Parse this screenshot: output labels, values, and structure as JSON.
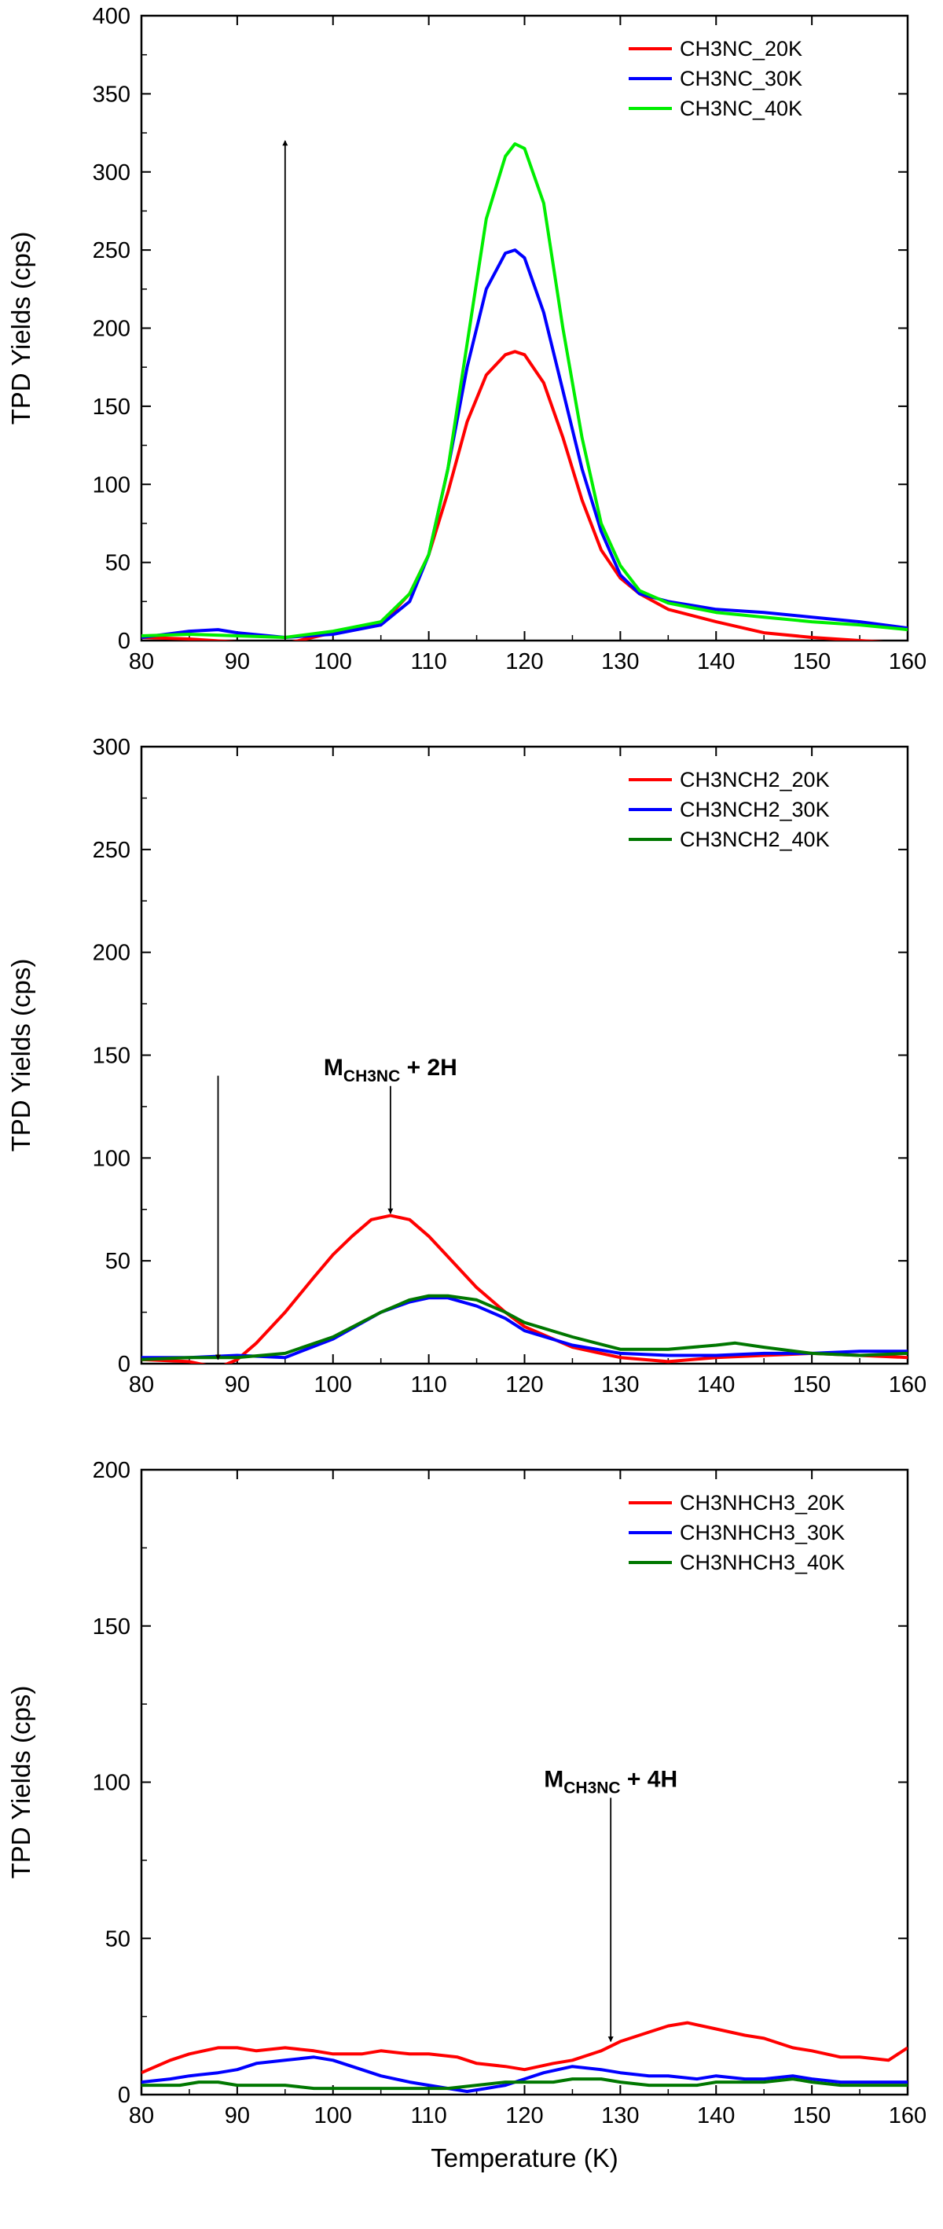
{
  "chart_data": [
    {
      "type": "line",
      "xlabel": "",
      "ylabel": "TPD Yields (cps)",
      "xlim": [
        80,
        160
      ],
      "ylim": [
        0,
        400
      ],
      "xticks": [
        80,
        90,
        100,
        110,
        120,
        130,
        140,
        150,
        160
      ],
      "yticks": [
        0,
        50,
        100,
        150,
        200,
        250,
        300,
        350,
        400
      ],
      "legend_position": "top-right",
      "series": [
        {
          "name": "CH3NC_20K",
          "color": "#ff0000",
          "x": [
            80,
            85,
            90,
            95,
            100,
            105,
            108,
            110,
            112,
            114,
            116,
            118,
            119,
            120,
            122,
            124,
            126,
            128,
            130,
            132,
            135,
            140,
            145,
            150,
            155,
            160
          ],
          "y": [
            2,
            1,
            -1,
            -2,
            5,
            10,
            30,
            55,
            95,
            140,
            170,
            183,
            185,
            183,
            165,
            130,
            90,
            58,
            40,
            30,
            20,
            12,
            5,
            2,
            0,
            -2
          ]
        },
        {
          "name": "CH3NC_30K",
          "color": "#0000ff",
          "x": [
            80,
            85,
            88,
            90,
            95,
            100,
            105,
            108,
            110,
            112,
            114,
            116,
            118,
            119,
            120,
            122,
            124,
            126,
            128,
            130,
            132,
            135,
            140,
            145,
            150,
            155,
            160
          ],
          "y": [
            2,
            6,
            7,
            5,
            2,
            4,
            10,
            25,
            55,
            110,
            175,
            225,
            248,
            250,
            245,
            210,
            160,
            110,
            70,
            42,
            30,
            25,
            20,
            18,
            15,
            12,
            8
          ]
        },
        {
          "name": "CH3NC_40K",
          "color": "#00ee00",
          "x": [
            80,
            85,
            90,
            95,
            100,
            105,
            108,
            110,
            112,
            114,
            116,
            118,
            119,
            120,
            122,
            124,
            126,
            128,
            130,
            132,
            135,
            140,
            145,
            150,
            155,
            160
          ],
          "y": [
            3,
            4,
            3,
            2,
            6,
            12,
            30,
            55,
            110,
            190,
            270,
            310,
            318,
            315,
            280,
            200,
            130,
            75,
            48,
            32,
            24,
            18,
            15,
            12,
            10,
            7
          ]
        }
      ],
      "annotations": [
        {
          "type": "arrow",
          "x": 95,
          "y_from": 0,
          "y_to": 320,
          "direction": "up"
        }
      ]
    },
    {
      "type": "line",
      "xlabel": "",
      "ylabel": "TPD Yields (cps)",
      "xlim": [
        80,
        160
      ],
      "ylim": [
        0,
        300
      ],
      "xticks": [
        80,
        90,
        100,
        110,
        120,
        130,
        140,
        150,
        160
      ],
      "yticks": [
        0,
        50,
        100,
        150,
        200,
        250,
        300
      ],
      "legend_position": "top-right",
      "series": [
        {
          "name": "CH3NCH2_20K",
          "color": "#ff0000",
          "x": [
            80,
            85,
            88,
            90,
            92,
            95,
            98,
            100,
            102,
            104,
            106,
            108,
            110,
            112,
            115,
            118,
            120,
            125,
            130,
            135,
            140,
            145,
            150,
            155,
            160
          ],
          "y": [
            2,
            1,
            -2,
            2,
            10,
            25,
            42,
            53,
            62,
            70,
            72,
            70,
            62,
            52,
            37,
            25,
            18,
            8,
            3,
            1,
            3,
            4,
            5,
            4,
            3
          ]
        },
        {
          "name": "CH3NCH2_30K",
          "color": "#0000ff",
          "x": [
            80,
            85,
            90,
            95,
            100,
            105,
            108,
            110,
            112,
            115,
            118,
            120,
            125,
            130,
            135,
            140,
            145,
            150,
            155,
            160
          ],
          "y": [
            3,
            3,
            4,
            3,
            12,
            25,
            30,
            32,
            32,
            28,
            22,
            16,
            9,
            5,
            4,
            4,
            5,
            5,
            6,
            6
          ]
        },
        {
          "name": "CH3NCH2_40K",
          "color": "#007700",
          "x": [
            80,
            85,
            90,
            95,
            100,
            105,
            108,
            110,
            112,
            115,
            118,
            120,
            125,
            130,
            135,
            140,
            142,
            145,
            150,
            155,
            160
          ],
          "y": [
            2,
            3,
            3,
            5,
            13,
            25,
            31,
            33,
            33,
            31,
            25,
            20,
            13,
            7,
            7,
            9,
            10,
            8,
            5,
            4,
            5
          ]
        }
      ],
      "annotations": [
        {
          "type": "arrow",
          "x": 88,
          "y_from": 140,
          "y_to": 2,
          "direction": "down"
        },
        {
          "type": "arrow",
          "x": 106,
          "y_from": 135,
          "y_to": 73,
          "direction": "down",
          "label_main": "M",
          "label_sub": "CH3NC",
          "label_tail": " + 2H"
        }
      ]
    },
    {
      "type": "line",
      "xlabel": "Temperature (K)",
      "ylabel": "TPD Yields (cps)",
      "xlim": [
        80,
        160
      ],
      "ylim": [
        0,
        200
      ],
      "xticks": [
        80,
        90,
        100,
        110,
        120,
        130,
        140,
        150,
        160
      ],
      "yticks": [
        0,
        50,
        100,
        150,
        200
      ],
      "legend_position": "top-right",
      "series": [
        {
          "name": "CH3NHCH3_20K",
          "color": "#ff0000",
          "x": [
            80,
            83,
            85,
            88,
            90,
            92,
            95,
            98,
            100,
            103,
            105,
            108,
            110,
            113,
            115,
            118,
            120,
            123,
            125,
            128,
            130,
            133,
            135,
            137,
            140,
            143,
            145,
            148,
            150,
            153,
            155,
            158,
            160
          ],
          "y": [
            7,
            11,
            13,
            15,
            15,
            14,
            15,
            14,
            13,
            13,
            14,
            13,
            13,
            12,
            10,
            9,
            8,
            10,
            11,
            14,
            17,
            20,
            22,
            23,
            21,
            19,
            18,
            15,
            14,
            12,
            12,
            11,
            15
          ]
        },
        {
          "name": "CH3NHCH3_30K",
          "color": "#0000ff",
          "x": [
            80,
            83,
            85,
            88,
            90,
            92,
            95,
            98,
            100,
            103,
            105,
            108,
            110,
            112,
            114,
            116,
            118,
            120,
            122,
            125,
            128,
            130,
            133,
            135,
            138,
            140,
            143,
            145,
            148,
            150,
            153,
            155,
            158,
            160
          ],
          "y": [
            4,
            5,
            6,
            7,
            8,
            10,
            11,
            12,
            11,
            8,
            6,
            4,
            3,
            2,
            1,
            2,
            3,
            5,
            7,
            9,
            8,
            7,
            6,
            6,
            5,
            6,
            5,
            5,
            6,
            5,
            4,
            4,
            4,
            4
          ]
        },
        {
          "name": "CH3NHCH3_40K",
          "color": "#007700",
          "x": [
            80,
            82,
            84,
            86,
            88,
            90,
            92,
            95,
            98,
            100,
            103,
            105,
            108,
            110,
            112,
            115,
            118,
            120,
            123,
            125,
            128,
            130,
            133,
            135,
            138,
            140,
            143,
            145,
            148,
            150,
            153,
            155,
            158,
            160
          ],
          "y": [
            3,
            3,
            3,
            4,
            4,
            3,
            3,
            3,
            2,
            2,
            2,
            2,
            2,
            2,
            2,
            3,
            4,
            4,
            4,
            5,
            5,
            4,
            3,
            3,
            3,
            4,
            4,
            4,
            5,
            4,
            3,
            3,
            3,
            3
          ]
        }
      ],
      "annotations": [
        {
          "type": "arrow",
          "x": 129,
          "y_from": 95,
          "y_to": 17,
          "direction": "down",
          "label_main": "M",
          "label_sub": "CH3NC",
          "label_tail": " + 4H"
        }
      ]
    }
  ]
}
